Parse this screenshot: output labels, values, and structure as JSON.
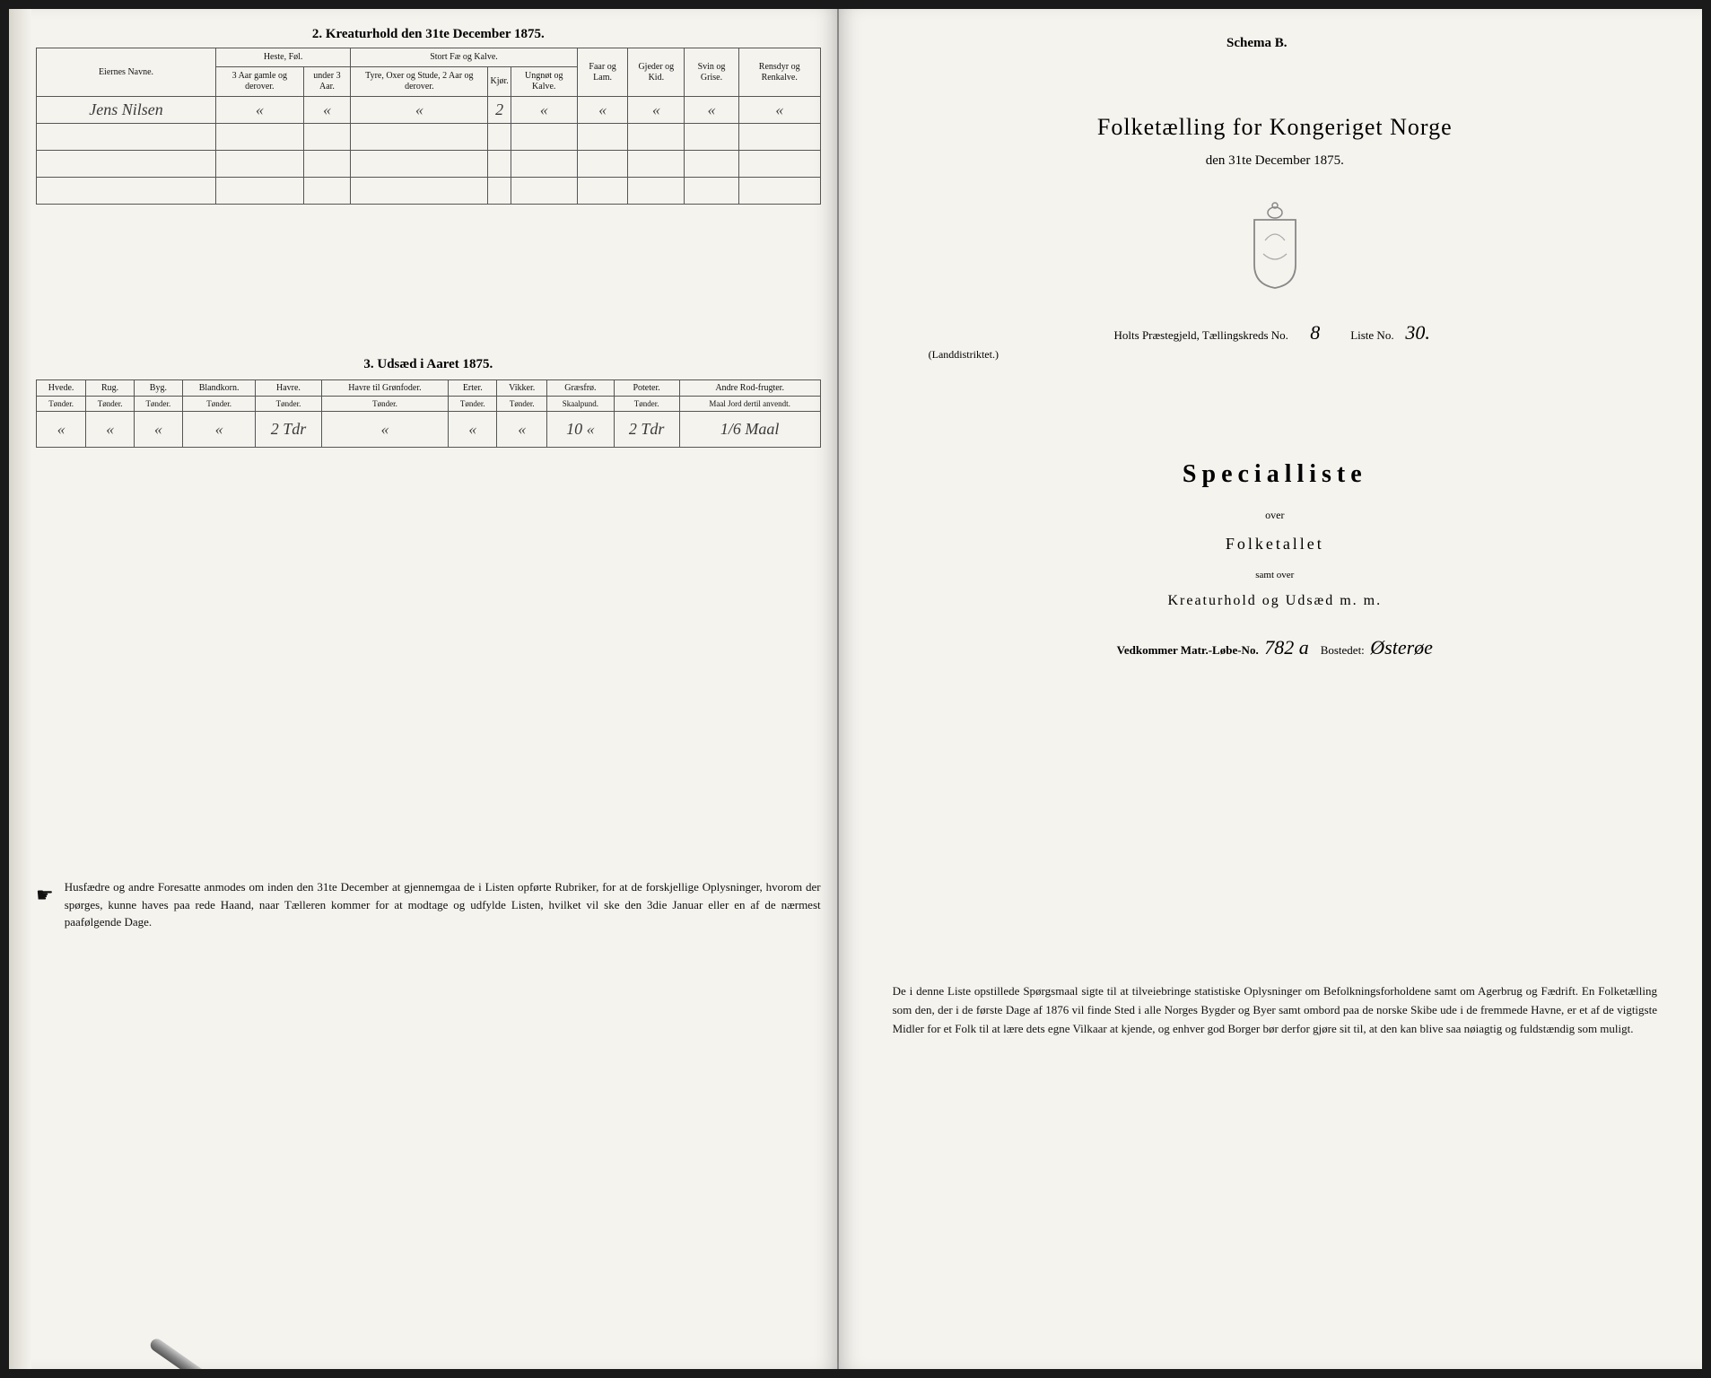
{
  "left": {
    "section2_title": "2.  Kreaturhold den 31te December 1875.",
    "table2": {
      "headers": {
        "eier": "Eiernes Navne.",
        "heste_group": "Heste, Føl.",
        "heste_a": "3 Aar gamle og derover.",
        "heste_b": "under 3 Aar.",
        "stort_group": "Stort Fæ og Kalve.",
        "stort_a": "Tyre, Oxer og Stude, 2 Aar og derover.",
        "stort_b": "Kjør.",
        "stort_c": "Ungnøt og Kalve.",
        "faar": "Faar og Lam.",
        "gjeder": "Gjeder og Kid.",
        "svin": "Svin og Grise.",
        "rens": "Rensdyr og Renkalve."
      },
      "row": {
        "name": "Jens Nilsen",
        "c1": "«",
        "c2": "«",
        "c3": "«",
        "c4": "2",
        "c5": "«",
        "c6": "«",
        "c7": "«",
        "c8": "«",
        "c9": "«"
      }
    },
    "section3_title": "3.  Udsæd i Aaret 1875.",
    "table3": {
      "cols": [
        {
          "h": "Hvede.",
          "s": "Tønder."
        },
        {
          "h": "Rug.",
          "s": "Tønder."
        },
        {
          "h": "Byg.",
          "s": "Tønder."
        },
        {
          "h": "Blandkorn.",
          "s": "Tønder."
        },
        {
          "h": "Havre.",
          "s": "Tønder."
        },
        {
          "h": "Havre til Grønfoder.",
          "s": "Tønder."
        },
        {
          "h": "Erter.",
          "s": "Tønder."
        },
        {
          "h": "Vikker.",
          "s": "Tønder."
        },
        {
          "h": "Græsfrø.",
          "s": "Skaalpund."
        },
        {
          "h": "Poteter.",
          "s": "Tønder."
        },
        {
          "h": "Andre Rod-frugter.",
          "s": "Maal Jord dertil anvendt."
        }
      ],
      "row": [
        "«",
        "«",
        "«",
        "«",
        "2 Tdr",
        "«",
        "«",
        "«",
        "10 «",
        "2 Tdr",
        "1/6 Maal"
      ]
    },
    "footnote": "Husfædre og andre Foresatte anmodes om inden den 31te December at gjennemgaa de i Listen opførte Rubriker, for at de forskjellige Oplysninger, hvorom der spørges, kunne haves paa rede Haand, naar Tælleren kommer for at modtage og udfylde Listen, hvilket vil ske den 3die Januar eller en af de nærmest paafølgende Dage."
  },
  "right": {
    "schema": "Schema B.",
    "title": "Folketælling for Kongeriget Norge",
    "date": "den 31te December 1875.",
    "district_prefix": "Holts",
    "district_label": " Præstegjeld, Tællingskreds No.",
    "kreds_no": "8",
    "liste_label": "Liste No.",
    "liste_no": "30.",
    "landd": "(Landdistriktet.)",
    "special": "Specialliste",
    "over": "over",
    "folketallet": "Folketallet",
    "samt": "samt over",
    "kreatur": "Kreaturhold og Udsæd m. m.",
    "vedkommer_label": "Vedkommer Matr.-Løbe-No.",
    "matr_no": "782 a",
    "bostedet_label": "Bostedet:",
    "bostedet": "Østerøe",
    "footnote": "De i denne Liste opstillede Spørgsmaal sigte til at tilveiebringe statistiske Oplysninger om Befolkningsforholdene samt om Agerbrug og Fædrift. En Folketælling som den, der i de første Dage af 1876 vil finde Sted i alle Norges Bygder og Byer samt ombord paa de norske Skibe ude i de fremmede Havne, er et af de vigtigste Midler for et Folk til at lære dets egne Vilkaar at kjende, og enhver god Borger bør derfor gjøre sit til, at den kan blive saa nøiagtig og fuldstændig som muligt."
  }
}
